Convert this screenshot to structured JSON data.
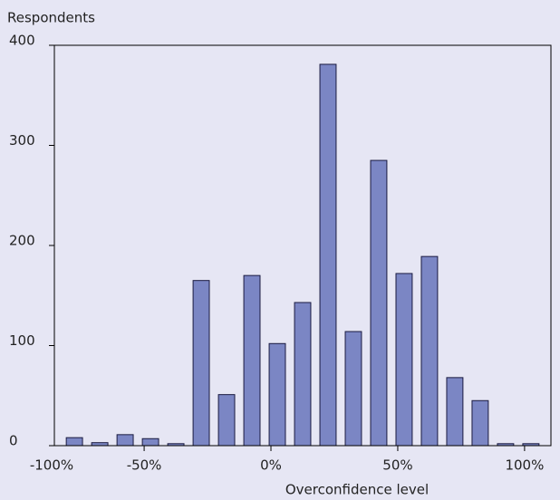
{
  "chart_data": {
    "type": "histogram",
    "ylabel": "Respondents",
    "xlabel": "Overconfidence level",
    "bins": [
      -82.5,
      -72.5,
      -62.5,
      -52.5,
      -42.5,
      -32.5,
      -22.5,
      -12.5,
      -2.5,
      7.5,
      17.5,
      27.5,
      37.5,
      47.5,
      57.5,
      67.5,
      77.5,
      87.5,
      97.5,
      107.5
    ],
    "values": [
      8,
      3,
      11,
      7,
      2,
      165,
      51,
      170,
      102,
      143,
      381,
      114,
      285,
      172,
      189,
      68,
      45,
      2,
      2
    ],
    "color": "#7b86c4",
    "xlim": [
      -85.4,
      110.4
    ],
    "xticks": [
      {
        "value": -100,
        "label": "-100%"
      },
      {
        "value": -50,
        "label": "-50%"
      },
      {
        "value": 0,
        "label": "0%"
      },
      {
        "value": 50,
        "label": "50%"
      },
      {
        "value": 100,
        "label": "100%"
      }
    ],
    "ylim": [
      0,
      400
    ],
    "yticks": [
      0,
      100,
      200,
      300,
      400
    ],
    "grid": false
  }
}
